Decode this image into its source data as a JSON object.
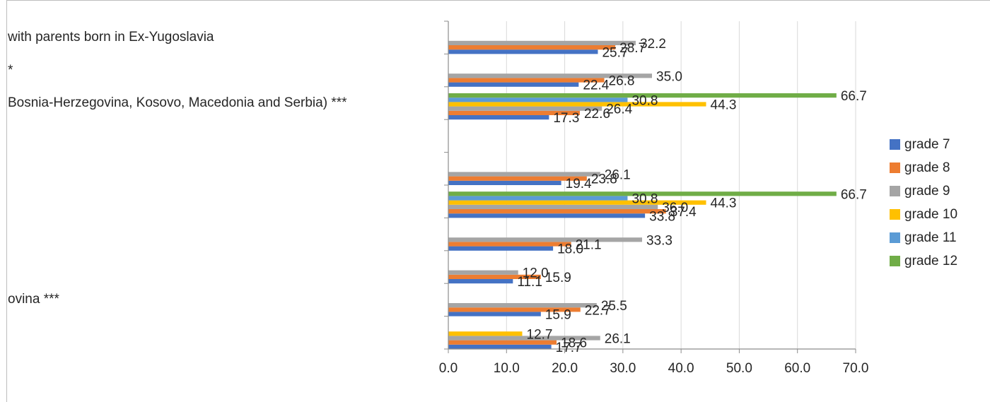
{
  "chart_data": {
    "type": "bar",
    "orientation": "horizontal",
    "category_labels_visible": [
      {
        "row": 0,
        "text": "with parents born in Ex-Yugoslavia"
      },
      {
        "row": 1,
        "text": "*"
      },
      {
        "row": 2,
        "text": "Bosnia-Herzegovina, Kosovo, Macedonia and Serbia) ***"
      },
      {
        "row": 8,
        "text": "ovina ***"
      }
    ],
    "series": [
      {
        "name": "grade 7",
        "color": "#4472C4",
        "values": [
          25.7,
          22.4,
          17.3,
          null,
          19.4,
          33.8,
          18.0,
          11.1,
          15.9,
          17.7
        ]
      },
      {
        "name": "grade 8",
        "color": "#ED7D31",
        "values": [
          28.7,
          26.8,
          22.6,
          null,
          23.8,
          37.4,
          21.1,
          15.9,
          22.7,
          18.6
        ]
      },
      {
        "name": "grade 9",
        "color": "#A5A5A5",
        "values": [
          32.2,
          35.0,
          26.4,
          null,
          26.1,
          36.0,
          33.3,
          12.0,
          25.5,
          26.1
        ]
      },
      {
        "name": "grade 10",
        "color": "#FFC000",
        "values": [
          null,
          null,
          44.3,
          null,
          null,
          44.3,
          null,
          null,
          null,
          12.7
        ]
      },
      {
        "name": "grade 11",
        "color": "#5B9BD5",
        "values": [
          null,
          null,
          30.8,
          null,
          null,
          30.8,
          null,
          null,
          null,
          null
        ]
      },
      {
        "name": "grade 12",
        "color": "#70AD47",
        "values": [
          null,
          null,
          66.7,
          null,
          null,
          66.7,
          null,
          null,
          null,
          null
        ]
      }
    ],
    "xlim": [
      0,
      70
    ],
    "x_ticks": [
      "0.0",
      "10.0",
      "20.0",
      "30.0",
      "40.0",
      "50.0",
      "60.0",
      "70.0"
    ],
    "grid": "vertical",
    "legend_position": "right"
  }
}
